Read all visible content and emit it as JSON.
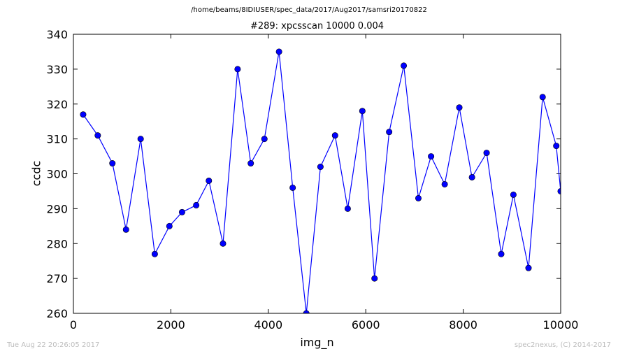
{
  "header": {
    "suptitle": "/home/beams/8IDIUSER/spec_data/2017/Aug2017/samsri20170822"
  },
  "footer": {
    "timestamp": "Tue Aug 22 20:26:05 2017",
    "credit": "spec2nexus, (C) 2014-2017"
  },
  "chart_data": {
    "type": "line",
    "title": "#289: xpcsscan 10000 0.004",
    "xlabel": "img_n",
    "ylabel": "ccdc",
    "xlim": [
      0,
      10000
    ],
    "ylim": [
      260,
      340
    ],
    "xticks": [
      0,
      2000,
      4000,
      6000,
      8000,
      10000
    ],
    "yticks": [
      260,
      270,
      280,
      290,
      300,
      310,
      320,
      330,
      340
    ],
    "grid": false,
    "line_color": "#0000ff",
    "marker": "circle",
    "x": [
      200,
      500,
      800,
      1080,
      1380,
      1670,
      1970,
      2230,
      2520,
      2780,
      3070,
      3370,
      3640,
      3920,
      4220,
      4500,
      4780,
      5070,
      5370,
      5630,
      5930,
      6180,
      6480,
      6780,
      7080,
      7340,
      7620,
      7920,
      8180,
      8480,
      8780,
      9030,
      9340,
      9630,
      9910,
      10000
    ],
    "y": [
      317,
      311,
      303,
      284,
      310,
      277,
      285,
      289,
      291,
      298,
      280,
      330,
      303,
      310,
      335,
      296,
      260,
      302,
      311,
      290,
      318,
      270,
      312,
      331,
      293,
      305,
      297,
      319,
      299,
      306,
      277,
      294,
      273,
      322,
      308,
      295
    ]
  }
}
